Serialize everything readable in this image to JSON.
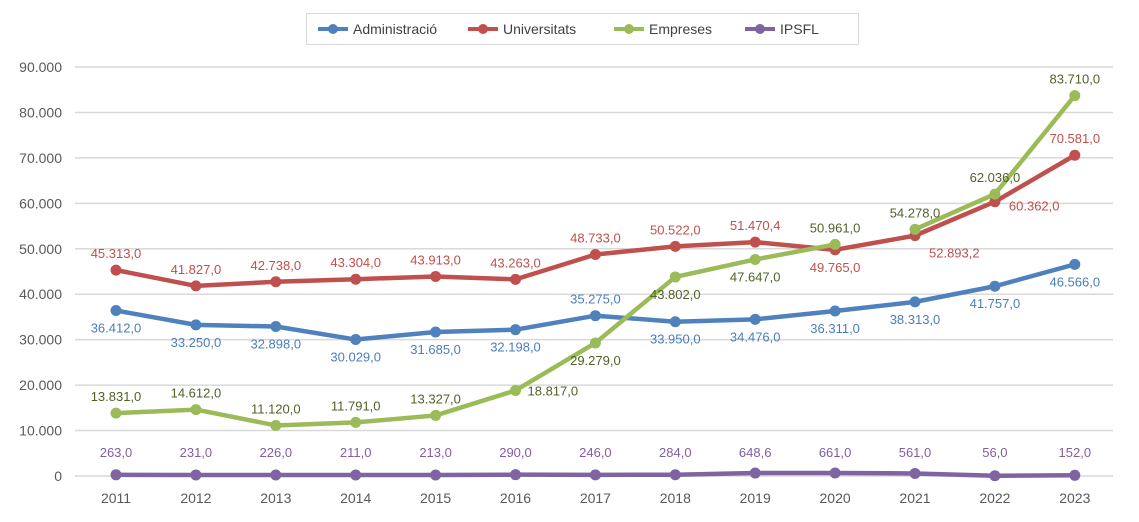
{
  "chart_data": {
    "type": "line",
    "title": "",
    "xlabel": "",
    "ylabel": "",
    "ylim": [
      0,
      90000
    ],
    "yticks": [
      "0",
      "10.000",
      "20.000",
      "30.000",
      "40.000",
      "50.000",
      "60.000",
      "70.000",
      "80.000",
      "90.000"
    ],
    "grid": true,
    "legend_position": "top",
    "categories": [
      "2011",
      "2012",
      "2013",
      "2014",
      "2015",
      "2016",
      "2017",
      "2018",
      "2019",
      "2020",
      "2021",
      "2022",
      "2023"
    ],
    "series": [
      {
        "name": "Administració",
        "color": "#4f81bd",
        "label_color": "#4a7ebb",
        "values": [
          36412,
          33250,
          32898,
          30029,
          31685,
          32198,
          35275,
          33950,
          34476,
          36311,
          38313,
          41757,
          46566
        ],
        "labels": [
          "36.412,0",
          "33.250,0",
          "32.898,0",
          "30.029,0",
          "31.685,0",
          "32.198,0",
          "35.275,0",
          "33.950,0",
          "34.476,0",
          "36.311,0",
          "38.313,0",
          "41.757,0",
          "46.566,0"
        ]
      },
      {
        "name": "Universitats",
        "color": "#c0504d",
        "label_color": "#c0504d",
        "values": [
          45313,
          41827,
          42738,
          43304,
          43913,
          43263,
          48733,
          50522,
          51470.4,
          49765,
          52893.2,
          60362,
          70581
        ],
        "labels": [
          "45.313,0",
          "41.827,0",
          "42.738,0",
          "43.304,0",
          "43.913,0",
          "43.263,0",
          "48.733,0",
          "50.522,0",
          "51.470,4",
          "49.765,0",
          "52.893,2",
          "60.362,0",
          "70.581,0"
        ]
      },
      {
        "name": "Empreses",
        "color": "#9bbb59",
        "label_color": "#4f6228",
        "gap_after": "2020",
        "values": [
          13831,
          14612,
          11120,
          11791,
          13327,
          18817,
          29279,
          43802,
          47647,
          50961,
          54278,
          62036,
          83710
        ],
        "labels": [
          "13.831,0",
          "14.612,0",
          "11.120,0",
          "11.791,0",
          "13.327,0",
          "18.817,0",
          "29.279,0",
          "43.802,0",
          "47.647,0",
          "50.961,0",
          "54.278,0",
          "62.036,0",
          "83.710,0"
        ]
      },
      {
        "name": "IPSFL",
        "color": "#8064a2",
        "label_color": "#7f5fa1",
        "values": [
          263,
          231,
          226,
          211,
          213,
          290,
          246,
          284,
          648.6,
          661,
          561,
          56,
          152
        ],
        "labels": [
          "263,0",
          "231,0",
          "226,0",
          "211,0",
          "213,0",
          "290,0",
          "246,0",
          "284,0",
          "648,6",
          "661,0",
          "561,0",
          "56,0",
          "152,0"
        ]
      }
    ]
  }
}
